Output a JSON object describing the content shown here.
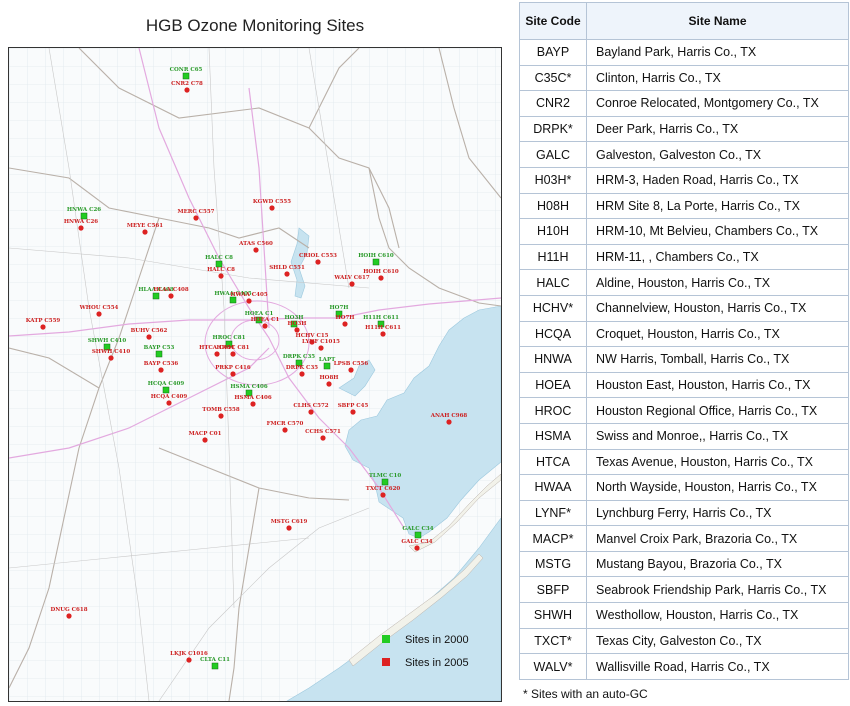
{
  "map": {
    "title": "HGB Ozone Monitoring Sites",
    "legend": [
      {
        "label": "Sites in 2000",
        "color": "#22cc22"
      },
      {
        "label": "Sites in 2005",
        "color": "#dd2222"
      }
    ],
    "colors": {
      "water": "#c7e3f0",
      "land": "#f9fbfc",
      "grid": "#dfe8ee",
      "county": "#b9b0a8",
      "highway": "#e3a9df",
      "site_2000_label": "#2a9a2a",
      "site_2005_label": "#cc1f1f"
    },
    "markers": [
      {
        "label": "CONR C65",
        "type": "2000"
      },
      {
        "label": "CNR2 C78",
        "type": "2005"
      },
      {
        "label": "HNWA C26",
        "type": "2000"
      },
      {
        "label": "HNWA C26",
        "type": "2005"
      },
      {
        "label": "MEYE C561",
        "type": "2005"
      },
      {
        "label": "MERC C557",
        "type": "2005"
      },
      {
        "label": "KGWD C555",
        "type": "2005"
      },
      {
        "label": "ATAS C560",
        "type": "2005"
      },
      {
        "label": "CRIOL C553",
        "type": "2005"
      },
      {
        "label": "HOIH C610",
        "type": "2000"
      },
      {
        "label": "HOIH C610",
        "type": "2005"
      },
      {
        "label": "HALC C8",
        "type": "2000"
      },
      {
        "label": "HALC C8",
        "type": "2005"
      },
      {
        "label": "SHLD C551",
        "type": "2005"
      },
      {
        "label": "WALV C617",
        "type": "2005"
      },
      {
        "label": "HLAA C408",
        "type": "2000"
      },
      {
        "label": "HLAA C408",
        "type": "2005"
      },
      {
        "label": "HWAA C405",
        "type": "2000"
      },
      {
        "label": "HWAA C405",
        "type": "2005"
      },
      {
        "label": "HOEA C1",
        "type": "2000"
      },
      {
        "label": "HOEA C1",
        "type": "2005"
      },
      {
        "label": "HO3H",
        "type": "2000"
      },
      {
        "label": "HO3H",
        "type": "2005"
      },
      {
        "label": "HO7H",
        "type": "2000"
      },
      {
        "label": "HO7H",
        "type": "2005"
      },
      {
        "label": "HCHV C15",
        "type": "2005"
      },
      {
        "label": "H11H C611",
        "type": "2000"
      },
      {
        "label": "H11H C611",
        "type": "2005"
      },
      {
        "label": "WHOU C554",
        "type": "2005"
      },
      {
        "label": "KATP C559",
        "type": "2005"
      },
      {
        "label": "BUHV C562",
        "type": "2005"
      },
      {
        "label": "SHWH C410",
        "type": "2000"
      },
      {
        "label": "SHWH C410",
        "type": "2005"
      },
      {
        "label": "BAYP C53",
        "type": "2000"
      },
      {
        "label": "BAYP C536",
        "type": "2005"
      },
      {
        "label": "HCQA C409",
        "type": "2000"
      },
      {
        "label": "HCQA C409",
        "type": "2005"
      },
      {
        "label": "HROC C81",
        "type": "2000"
      },
      {
        "label": "HROC C81",
        "type": "2005"
      },
      {
        "label": "HTCA C411",
        "type": "2005"
      },
      {
        "label": "PRKP C416",
        "type": "2005"
      },
      {
        "label": "DRPK C35",
        "type": "2000"
      },
      {
        "label": "DRPK C35",
        "type": "2005"
      },
      {
        "label": "LAPT",
        "type": "2000"
      },
      {
        "label": "LYNF C1015",
        "type": "2005"
      },
      {
        "label": "HO8H",
        "type": "2005"
      },
      {
        "label": "LPSB C556",
        "type": "2005"
      },
      {
        "label": "HSMA C406",
        "type": "2000"
      },
      {
        "label": "HSMA C406",
        "type": "2005"
      },
      {
        "label": "TOMB C558",
        "type": "2005"
      },
      {
        "label": "SBFP C45",
        "type": "2005"
      },
      {
        "label": "CLHS C572",
        "type": "2005"
      },
      {
        "label": "FMCR C570",
        "type": "2005"
      },
      {
        "label": "CCHS C571",
        "type": "2005"
      },
      {
        "label": "MACP C01",
        "type": "2005"
      },
      {
        "label": "ANAH C968",
        "type": "2005"
      },
      {
        "label": "TLMC C10",
        "type": "2000"
      },
      {
        "label": "TXCT C620",
        "type": "2005"
      },
      {
        "label": "GALC C34",
        "type": "2000"
      },
      {
        "label": "GALC C34",
        "type": "2005"
      },
      {
        "label": "MSTG C619",
        "type": "2005"
      },
      {
        "label": "DNUG C618",
        "type": "2005"
      },
      {
        "label": "LKJK C1016",
        "type": "2005"
      },
      {
        "label": "CLTA C11",
        "type": "2000"
      }
    ]
  },
  "table": {
    "headers": {
      "code": "Site Code",
      "name": "Site Name"
    },
    "rows": [
      {
        "code": "BAYP",
        "name": "Bayland Park, Harris Co., TX"
      },
      {
        "code": "C35C*",
        "name": "Clinton, Harris Co., TX"
      },
      {
        "code": "CNR2",
        "name": "Conroe Relocated, Montgomery Co., TX"
      },
      {
        "code": "DRPK*",
        "name": "Deer Park, Harris Co., TX"
      },
      {
        "code": "GALC",
        "name": "Galveston, Galveston Co., TX"
      },
      {
        "code": "H03H*",
        "name": "HRM-3, Haden Road, Harris Co., TX"
      },
      {
        "code": "H08H",
        "name": "HRM Site 8, La Porte, Harris Co., TX"
      },
      {
        "code": "H10H",
        "name": "HRM-10, Mt Belvieu, Chambers Co., TX"
      },
      {
        "code": "H11H",
        "name": "HRM-11, , Chambers Co., TX"
      },
      {
        "code": "HALC",
        "name": "Aldine, Houston, Harris Co., TX"
      },
      {
        "code": "HCHV*",
        "name": "Channelview, Houston, Harris Co., TX"
      },
      {
        "code": "HCQA",
        "name": "Croquet, Houston, Harris Co., TX"
      },
      {
        "code": "HNWA",
        "name": "NW Harris, Tomball, Harris Co., TX"
      },
      {
        "code": "HOEA",
        "name": "Houston East, Houston, Harris Co., TX"
      },
      {
        "code": "HROC",
        "name": "Houston Regional Office, Harris Co., TX"
      },
      {
        "code": "HSMA",
        "name": "Swiss and Monroe,, Harris Co., TX"
      },
      {
        "code": "HTCA",
        "name": "Texas Avenue, Houston, Harris Co., TX"
      },
      {
        "code": "HWAA",
        "name": "North Wayside, Houston, Harris Co., TX"
      },
      {
        "code": "LYNF*",
        "name": "Lynchburg Ferry, Harris Co., TX"
      },
      {
        "code": "MACP*",
        "name": "Manvel Croix Park, Brazoria Co., TX"
      },
      {
        "code": "MSTG",
        "name": "Mustang Bayou, Brazoria Co., TX"
      },
      {
        "code": "SBFP",
        "name": "Seabrook Friendship Park, Harris Co., TX"
      },
      {
        "code": "SHWH",
        "name": "Westhollow, Houston, Harris Co., TX"
      },
      {
        "code": "TXCT*",
        "name": "Texas City, Galveston Co., TX"
      },
      {
        "code": "WALV*",
        "name": "Wallisville Road, Harris Co., TX"
      }
    ],
    "footnote": "* Sites with an auto-GC"
  }
}
